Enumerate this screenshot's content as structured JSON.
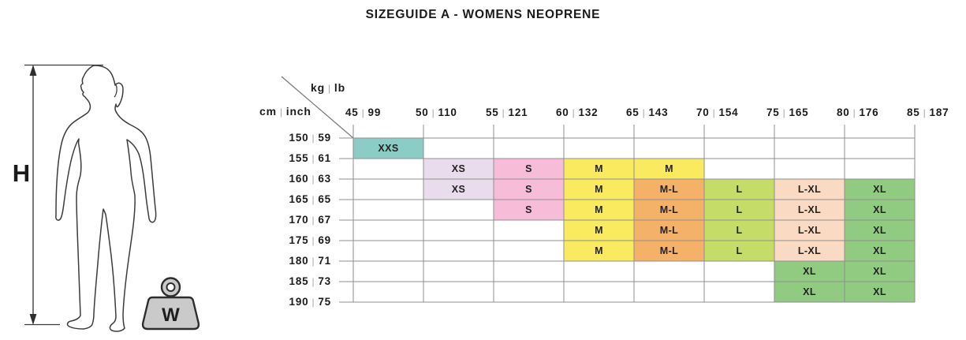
{
  "chart_data": {
    "type": "heatmap",
    "title": "SIZEGUIDE A - WOMENS NEOPRENE",
    "x_axis": {
      "unit_primary": "kg",
      "unit_secondary": "lb",
      "separator": "|",
      "ticks": [
        {
          "kg": "45",
          "lb": "99"
        },
        {
          "kg": "50",
          "lb": "110"
        },
        {
          "kg": "55",
          "lb": "121"
        },
        {
          "kg": "60",
          "lb": "132"
        },
        {
          "kg": "65",
          "lb": "143"
        },
        {
          "kg": "70",
          "lb": "154"
        },
        {
          "kg": "75",
          "lb": "165"
        },
        {
          "kg": "80",
          "lb": "176"
        },
        {
          "kg": "85",
          "lb": "187"
        }
      ]
    },
    "y_axis": {
      "unit_primary": "cm",
      "unit_secondary": "inch",
      "separator": "|",
      "ticks": [
        {
          "cm": "150",
          "inch": "59"
        },
        {
          "cm": "155",
          "inch": "61"
        },
        {
          "cm": "160",
          "inch": "63"
        },
        {
          "cm": "165",
          "inch": "65"
        },
        {
          "cm": "170",
          "inch": "67"
        },
        {
          "cm": "175",
          "inch": "69"
        },
        {
          "cm": "180",
          "inch": "71"
        },
        {
          "cm": "185",
          "inch": "73"
        },
        {
          "cm": "190",
          "inch": "75"
        }
      ]
    },
    "grid_rows": [
      [
        "XXS",
        "",
        "",
        "",
        "",
        "",
        "",
        ""
      ],
      [
        "",
        "XS",
        "S",
        "M",
        "M",
        "",
        "",
        ""
      ],
      [
        "",
        "XS",
        "S",
        "M",
        "M-L",
        "L",
        "L-XL",
        "XL"
      ],
      [
        "",
        "",
        "S",
        "M",
        "M-L",
        "L",
        "L-XL",
        "XL"
      ],
      [
        "",
        "",
        "",
        "M",
        "M-L",
        "L",
        "L-XL",
        "XL"
      ],
      [
        "",
        "",
        "",
        "M",
        "M-L",
        "L",
        "L-XL",
        "XL"
      ],
      [
        "",
        "",
        "",
        "",
        "",
        "",
        "XL",
        "XL"
      ],
      [
        "",
        "",
        "",
        "",
        "",
        "",
        "XL",
        "XL"
      ]
    ],
    "size_colors": {
      "XXS": "#8cccc7",
      "XS": "#e9dcec",
      "S": "#f7bcd8",
      "M": "#f9ea5f",
      "M-L": "#f4b168",
      "L": "#c6dc68",
      "L-XL": "#fadac3",
      "XL": "#90cb81"
    }
  },
  "figure": {
    "height_label": "H",
    "weight_label": "W"
  }
}
